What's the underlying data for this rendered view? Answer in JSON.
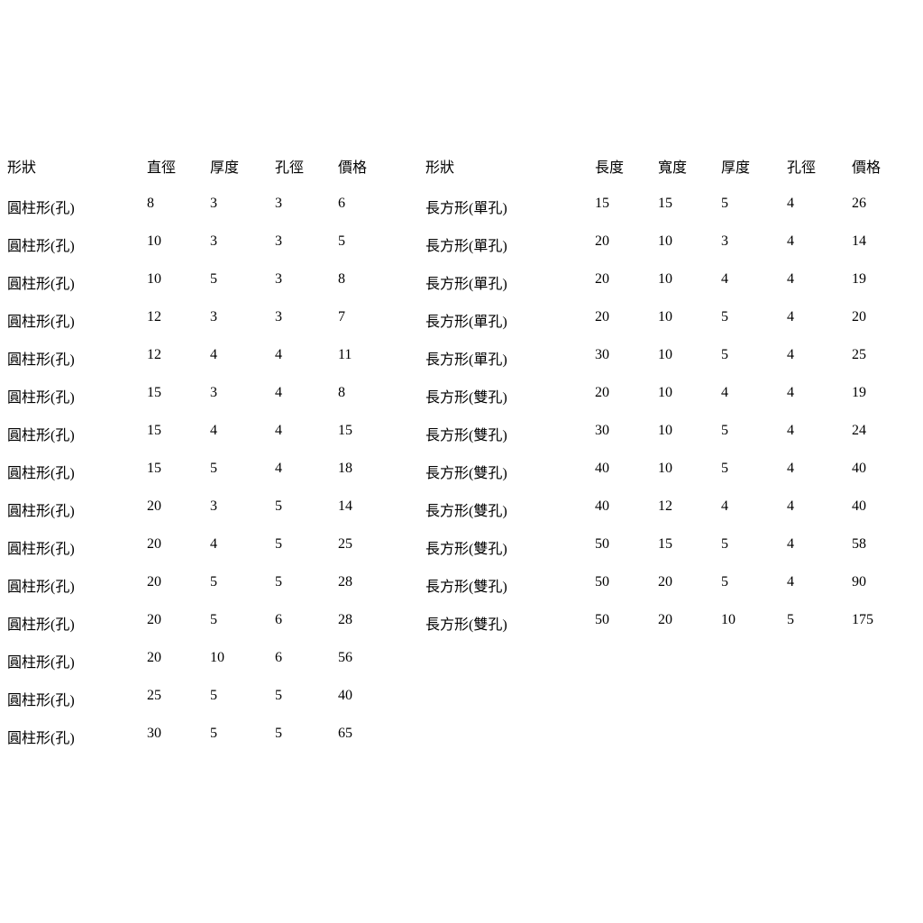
{
  "sheet": {
    "background_color": "#ffffff",
    "gridline_color": "#d4d4d4",
    "text_color": "#282828"
  },
  "left_table": {
    "headers": [
      "形狀",
      "直徑",
      "厚度",
      "孔徑",
      "價格"
    ],
    "rows": [
      [
        "圓柱形(孔)",
        "8",
        "3",
        "3",
        "6"
      ],
      [
        "圓柱形(孔)",
        "10",
        "3",
        "3",
        "5"
      ],
      [
        "圓柱形(孔)",
        "10",
        "5",
        "3",
        "8"
      ],
      [
        "圓柱形(孔)",
        "12",
        "3",
        "3",
        "7"
      ],
      [
        "圓柱形(孔)",
        "12",
        "4",
        "4",
        "11"
      ],
      [
        "圓柱形(孔)",
        "15",
        "3",
        "4",
        "8"
      ],
      [
        "圓柱形(孔)",
        "15",
        "4",
        "4",
        "15"
      ],
      [
        "圓柱形(孔)",
        "15",
        "5",
        "4",
        "18"
      ],
      [
        "圓柱形(孔)",
        "20",
        "3",
        "5",
        "14"
      ],
      [
        "圓柱形(孔)",
        "20",
        "4",
        "5",
        "25"
      ],
      [
        "圓柱形(孔)",
        "20",
        "5",
        "5",
        "28"
      ],
      [
        "圓柱形(孔)",
        "20",
        "5",
        "6",
        "28"
      ],
      [
        "圓柱形(孔)",
        "20",
        "10",
        "6",
        "56"
      ],
      [
        "圓柱形(孔)",
        "25",
        "5",
        "5",
        "40"
      ],
      [
        "圓柱形(孔)",
        "30",
        "5",
        "5",
        "65"
      ]
    ]
  },
  "right_table": {
    "headers": [
      "形狀",
      "長度",
      "寬度",
      "厚度",
      "孔徑",
      "價格"
    ],
    "rows": [
      [
        "長方形(單孔)",
        "15",
        "15",
        "5",
        "4",
        "26"
      ],
      [
        "長方形(單孔)",
        "20",
        "10",
        "3",
        "4",
        "14"
      ],
      [
        "長方形(單孔)",
        "20",
        "10",
        "4",
        "4",
        "19"
      ],
      [
        "長方形(單孔)",
        "20",
        "10",
        "5",
        "4",
        "20"
      ],
      [
        "長方形(單孔)",
        "30",
        "10",
        "5",
        "4",
        "25"
      ],
      [
        "長方形(雙孔)",
        "20",
        "10",
        "4",
        "4",
        "19"
      ],
      [
        "長方形(雙孔)",
        "30",
        "10",
        "5",
        "4",
        "24"
      ],
      [
        "長方形(雙孔)",
        "40",
        "10",
        "5",
        "4",
        "40"
      ],
      [
        "長方形(雙孔)",
        "40",
        "12",
        "4",
        "4",
        "40"
      ],
      [
        "長方形(雙孔)",
        "50",
        "15",
        "5",
        "4",
        "58"
      ],
      [
        "長方形(雙孔)",
        "50",
        "20",
        "5",
        "4",
        "90"
      ],
      [
        "長方形(雙孔)",
        "50",
        "20",
        "10",
        "5",
        "175"
      ]
    ]
  }
}
